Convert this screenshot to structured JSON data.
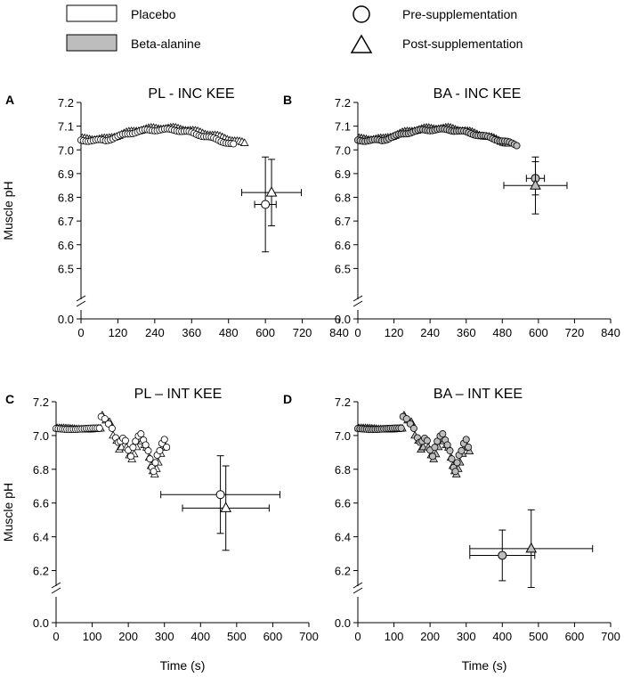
{
  "legend": {
    "fill_items": [
      {
        "label": "Placebo",
        "color": "#ffffff"
      },
      {
        "label": "Beta-alanine",
        "color": "#bdbdbd"
      }
    ],
    "marker_items": [
      {
        "label": "Pre-supplementation",
        "marker": "circle"
      },
      {
        "label": "Post-supplementation",
        "marker": "triangle"
      }
    ]
  },
  "colors": {
    "placebo": "#ffffff",
    "beta_alanine": "#bdbdbd",
    "stroke": "#000000"
  },
  "chart_data": [
    {
      "panel_label": "A",
      "title": "PL - INC KEE",
      "type": "scatter",
      "xlabel": "",
      "ylabel": "Muscle pH",
      "xlim": [
        0,
        840
      ],
      "xticks": [
        "0",
        "120",
        "240",
        "360",
        "480",
        "600",
        "720",
        "840"
      ],
      "xtick_values": [
        0,
        120,
        240,
        360,
        480,
        600,
        720,
        840
      ],
      "ylim": [
        6.4,
        7.2
      ],
      "yticks": [
        "6.5",
        "6.6",
        "6.7",
        "6.8",
        "6.9",
        "7.0",
        "7.1",
        "7.2"
      ],
      "ytick_values": [
        6.5,
        6.6,
        6.7,
        6.8,
        6.9,
        7.0,
        7.1,
        7.2
      ],
      "axis_break_label": "0.0",
      "group": "placebo",
      "trace_fn": "incremental",
      "trace_params": {
        "pre_end": 500,
        "post_end": 530
      },
      "summary": [
        {
          "name": "Pre-supplementation",
          "marker": "circle",
          "x": 600,
          "y": 6.77,
          "xerr": 35,
          "yerr": 0.2
        },
        {
          "name": "Post-supplementation",
          "marker": "triangle",
          "x": 620,
          "y": 6.82,
          "xerr": 97,
          "yerr": 0.14
        }
      ]
    },
    {
      "panel_label": "B",
      "title": "BA - INC KEE",
      "type": "scatter",
      "xlabel": "",
      "ylabel": "",
      "xlim": [
        0,
        840
      ],
      "xticks": [
        "0",
        "120",
        "240",
        "360",
        "480",
        "600",
        "720",
        "840"
      ],
      "xtick_values": [
        0,
        120,
        240,
        360,
        480,
        600,
        720,
        840
      ],
      "ylim": [
        6.4,
        7.2
      ],
      "yticks": [
        "6.5",
        "6.6",
        "6.7",
        "6.8",
        "6.9",
        "7.0",
        "7.1",
        "7.2"
      ],
      "ytick_values": [
        6.5,
        6.6,
        6.7,
        6.8,
        6.9,
        7.0,
        7.1,
        7.2
      ],
      "axis_break_label": "0.0",
      "group": "beta_alanine",
      "trace_fn": "incremental",
      "trace_params": {
        "pre_end": 530,
        "post_end": 500
      },
      "summary": [
        {
          "name": "Pre-supplementation",
          "marker": "circle",
          "x": 590,
          "y": 6.88,
          "xerr": 30,
          "yerr": 0.07
        },
        {
          "name": "Post-supplementation",
          "marker": "triangle",
          "x": 590,
          "y": 6.85,
          "xerr": 105,
          "yerr": 0.12
        }
      ]
    },
    {
      "panel_label": "C",
      "title": "PL – INT KEE",
      "type": "scatter",
      "xlabel": "Time (s)",
      "ylabel": "Muscle pH",
      "xlim": [
        0,
        700
      ],
      "xticks": [
        "0",
        "100",
        "200",
        "300",
        "400",
        "500",
        "600",
        "700"
      ],
      "xtick_values": [
        0,
        100,
        200,
        300,
        400,
        500,
        600,
        700
      ],
      "ylim": [
        6.15,
        7.2
      ],
      "yticks": [
        "6.2",
        "6.4",
        "6.6",
        "6.8",
        "7.0",
        "7.2"
      ],
      "ytick_values": [
        6.2,
        6.4,
        6.6,
        6.8,
        7.0,
        7.2
      ],
      "axis_break_label": "0.0",
      "group": "placebo",
      "trace_fn": "intermittent",
      "trace_params": {
        "end": 310
      },
      "summary": [
        {
          "name": "Pre-supplementation",
          "marker": "circle",
          "x": 455,
          "y": 6.65,
          "xerr": 165,
          "yerr": 0.23
        },
        {
          "name": "Post-supplementation",
          "marker": "triangle",
          "x": 470,
          "y": 6.57,
          "xerr": 120,
          "yerr": 0.25
        }
      ]
    },
    {
      "panel_label": "D",
      "title": "BA – INT KEE",
      "type": "scatter",
      "xlabel": "Time (s)",
      "ylabel": "",
      "xlim": [
        0,
        700
      ],
      "xticks": [
        "0",
        "100",
        "200",
        "300",
        "400",
        "500",
        "600",
        "700"
      ],
      "xtick_values": [
        0,
        100,
        200,
        300,
        400,
        500,
        600,
        700
      ],
      "ylim": [
        6.15,
        7.2
      ],
      "yticks": [
        "6.2",
        "6.4",
        "6.6",
        "6.8",
        "7.0",
        "7.2"
      ],
      "ytick_values": [
        6.2,
        6.4,
        6.6,
        6.8,
        7.0,
        7.2
      ],
      "axis_break_label": "0.0",
      "group": "beta_alanine",
      "trace_fn": "intermittent",
      "trace_params": {
        "end": 330
      },
      "summary": [
        {
          "name": "Pre-supplementation",
          "marker": "circle",
          "x": 400,
          "y": 6.29,
          "xerr": 90,
          "yerr": 0.15
        },
        {
          "name": "Post-supplementation",
          "marker": "triangle",
          "x": 480,
          "y": 6.33,
          "xerr": 170,
          "yerr": 0.23
        }
      ]
    }
  ]
}
